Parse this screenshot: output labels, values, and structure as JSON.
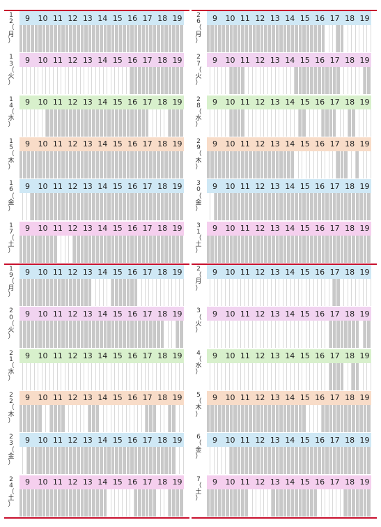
{
  "hours": [
    "9",
    "10",
    "11",
    "12",
    "13",
    "14",
    "15",
    "16",
    "17",
    "18",
    "19"
  ],
  "colors": {
    "mon": "#cfe8f5",
    "tue": "#f1d3f0",
    "wed": "#d8f0cc",
    "thu": "#f8dcc8",
    "fri": "#cfe8f5",
    "sat": "#f5cfee"
  },
  "columns": [
    {
      "days": [
        {
          "label": "1\n2\n（\n月\n）",
          "color": "mon",
          "busy": "1111111111111111111111111111111111111111111"
        },
        {
          "label": "1\n3\n（\n火\n）",
          "color": "tue",
          "busy": "0000000000000000000000000000011111111111111"
        },
        {
          "label": "1\n4\n（\n水\n）",
          "color": "wed",
          "busy": "0000000111111111111111111111111111000001111"
        },
        {
          "label": "1\n5\n（\n木\n）",
          "color": "thu",
          "busy": "1111111111111111111111111111111111111111111"
        },
        {
          "label": "1\n6\n（\n金\n）",
          "color": "fri",
          "busy": "0001111111111111111111111111111111111111111"
        },
        {
          "label": "1\n7\n（\n土\n）",
          "color": "sat",
          "busy": "1111111111000011111111111111111111111111111"
        }
      ]
    },
    {
      "days": [
        {
          "label": "2\n6\n（\n月\n）",
          "color": "mon",
          "busy": "1111111111111111111111111111111000110000000"
        },
        {
          "label": "2\n7\n（\n火\n）",
          "color": "tue",
          "busy": "0000001111000000000000011111111111100000011"
        },
        {
          "label": "2\n8\n（\n水\n）",
          "color": "wed",
          "busy": "0000001111000000000000001100001111000110000"
        },
        {
          "label": "2\n9\n（\n木\n）",
          "color": "thu",
          "busy": "1111111111111111111111100000000000111001000"
        },
        {
          "label": "3\n0\n（\n金\n）",
          "color": "fri",
          "busy": "0011111111111111111111111111111111111111111"
        },
        {
          "label": "3\n1\n（\n土\n）",
          "color": "sat",
          "busy": "1111111111111111111111111111111111111111111"
        }
      ]
    },
    {
      "days": [
        {
          "label": "1\n9\n（\n月\n）",
          "color": "mon",
          "busy": "1111111111111111111000001111111000000000000"
        },
        {
          "label": "2\n0\n（\n火\n）",
          "color": "tue",
          "busy": "1111111111111111111111111111111111111100011"
        },
        {
          "label": "2\n1\n（\n水\n）",
          "color": "wed",
          "busy": "0000000000000000000000000000000000000000000"
        },
        {
          "label": "2\n2\n（\n木\n）",
          "color": "thu",
          "busy": "1111110011110000001110000000000001110001100"
        },
        {
          "label": "2\n3\n（\n金\n）",
          "color": "fri",
          "busy": "0011111111111111111111111111111111111111100"
        },
        {
          "label": "2\n4\n（\n土\n）",
          "color": "sat",
          "busy": "1111111111111111111111100000001111110001111"
        }
      ]
    },
    {
      "days": [
        {
          "label": "2\n（\n月\n）",
          "color": "mon",
          "busy": "0000000000000000000000000000000001100000000"
        },
        {
          "label": "3\n（\n火\n）",
          "color": "tue",
          "busy": "0000000000000000000000000000000011111111011"
        },
        {
          "label": "4\n（\n水\n）",
          "color": "wed",
          "busy": "0000000000000000000000000000000011110011000"
        },
        {
          "label": "5\n（\n木\n）",
          "color": "thu",
          "busy": "1111111111111111111111111100001111111111111"
        },
        {
          "label": "6\n（\n金\n）",
          "color": "fri",
          "busy": "0000001111111111111111111111111111111111111"
        },
        {
          "label": "7\n（\n土\n）",
          "color": "sat",
          "busy": "1111111111100000011111111111100000001111111"
        }
      ]
    }
  ]
}
